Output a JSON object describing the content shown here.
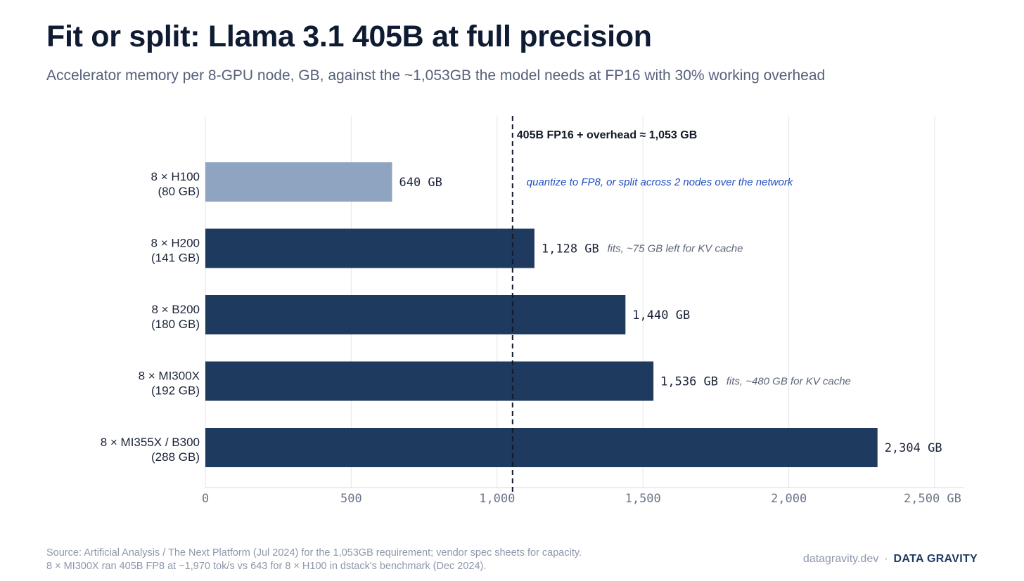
{
  "title": "Fit or split: Llama 3.1 405B at full precision",
  "subtitle": "Accelerator memory per 8-GPU node, GB, against the ~1,053GB the model needs at FP16 with 30% working overhead",
  "chart_data": {
    "type": "bar",
    "orientation": "horizontal",
    "categories": [
      [
        "8 × H100",
        "(80 GB)"
      ],
      [
        "8 × H200",
        "(141 GB)"
      ],
      [
        "8 × B200",
        "(180 GB)"
      ],
      [
        "8 × MI300X",
        "(192 GB)"
      ],
      [
        "8 × MI355X / B300",
        "(288 GB)"
      ]
    ],
    "values": [
      640,
      1128,
      1440,
      1536,
      2304
    ],
    "value_labels": [
      "640 GB",
      "1,128 GB",
      "1,440 GB",
      "1,536 GB",
      "2,304 GB"
    ],
    "bar_notes": [
      "",
      "fits, ~75 GB left for KV cache",
      "",
      "fits, ~480 GB for KV cache",
      ""
    ],
    "xlim": [
      0,
      2600
    ],
    "xticks": [
      0,
      500,
      1000,
      1500,
      2000,
      2500
    ],
    "xtick_labels": [
      "0",
      "500",
      "1,000",
      "1,500",
      "2,000",
      "2,500 GB"
    ],
    "grid": true,
    "reference_line": {
      "value": 1053,
      "label": "405B FP16 + overhead ≈ 1,053 GB"
    },
    "annotation": {
      "text": "quantize to FP8, or split across 2 nodes over the network",
      "bar_index": 0
    },
    "colors": {
      "bar": "#1f3a5f",
      "bar_short": "#8fa4c0",
      "annotation": "#1f4fbf",
      "note": "#5c6478",
      "grid": "#e2e5ea"
    }
  },
  "footer": {
    "source_line1": "Source: Artificial Analysis / The Next Platform (Jul 2024) for the 1,053GB requirement; vendor spec sheets for capacity.",
    "source_line2": "8 × MI300X ran 405B FP8 at ~1,970 tok/s vs 643 for 8 × H100 in dstack's benchmark (Dec 2024).",
    "site": "datagravity.dev",
    "separator": "·",
    "brand": "DATA GRAVITY"
  }
}
